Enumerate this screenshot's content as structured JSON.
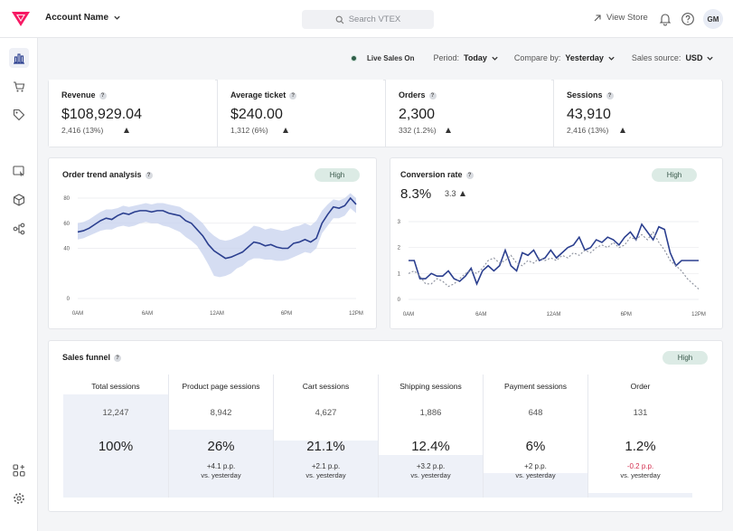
{
  "header": {
    "account_name": "Account Name",
    "search_placeholder": "Search VTEX",
    "view_store": "View Store",
    "avatar_initials": "GM"
  },
  "filters": {
    "live_sales": "Live Sales On",
    "period_label": "Period:",
    "period_value": "Today",
    "compare_label": "Compare by:",
    "compare_value": "Yesterday",
    "source_label": "Sales source:",
    "source_value": "USD"
  },
  "kpis": [
    {
      "title": "Revenue",
      "value": "$108,929.04",
      "sub": "2,416 (13%)"
    },
    {
      "title": "Average ticket",
      "value": "$240.00",
      "sub": "1,312 (6%)"
    },
    {
      "title": "Orders",
      "value": "2,300",
      "sub": "332 (1.2%)"
    },
    {
      "title": "Sessions",
      "value": "43,910",
      "sub": "2,416 (13%)"
    }
  ],
  "order_trend": {
    "title": "Order trend analysis",
    "badge": "High",
    "chart_data": {
      "type": "area",
      "x_labels": [
        "0AM",
        "6AM",
        "12AM",
        "6PM",
        "12PM"
      ],
      "y_ticks": [
        "0",
        "40",
        "60",
        "80"
      ],
      "ylim": [
        0,
        80
      ],
      "series": [
        {
          "values": [
            53,
            54,
            56,
            59,
            62,
            64,
            63,
            66,
            68,
            67,
            69,
            70,
            70,
            69,
            70,
            70,
            68,
            67,
            66,
            62,
            60,
            55,
            50,
            43,
            38,
            35,
            32,
            33,
            35,
            37,
            41,
            45,
            44,
            42,
            43,
            41,
            40,
            40,
            44,
            45,
            47,
            45,
            48,
            60,
            67,
            73,
            72,
            74,
            80,
            75
          ]
        }
      ],
      "band_lower": [
        47,
        48,
        50,
        52,
        54,
        55,
        55,
        57,
        58,
        57,
        58,
        60,
        61,
        60,
        60,
        58,
        57,
        55,
        53,
        49,
        46,
        42,
        35,
        27,
        18,
        17,
        18,
        20,
        24,
        26,
        30,
        32,
        32,
        31,
        31,
        30,
        30,
        31,
        33,
        35,
        37,
        36,
        40,
        52,
        58,
        64,
        64,
        66,
        72,
        68
      ],
      "band_upper": [
        60,
        61,
        63,
        66,
        69,
        71,
        71,
        72,
        74,
        73,
        74,
        75,
        76,
        75,
        76,
        76,
        75,
        74,
        73,
        70,
        68,
        64,
        60,
        54,
        50,
        47,
        46,
        47,
        49,
        51,
        54,
        58,
        57,
        55,
        56,
        55,
        54,
        55,
        57,
        58,
        60,
        58,
        62,
        70,
        75,
        79,
        78,
        80,
        84,
        80
      ]
    }
  },
  "conversion": {
    "title": "Conversion rate",
    "value": "8.3%",
    "delta": "3.3",
    "badge": "High",
    "chart_data": {
      "type": "line",
      "x_labels": [
        "0AM",
        "6AM",
        "12AM",
        "6PM",
        "12PM"
      ],
      "y_ticks": [
        "0",
        "1",
        "2",
        "3"
      ],
      "ylim": [
        0,
        3
      ],
      "series": [
        {
          "values": [
            1.5,
            1.5,
            0.8,
            0.8,
            1.0,
            0.9,
            0.9,
            1.1,
            0.8,
            0.7,
            0.9,
            1.2,
            0.6,
            1.1,
            1.3,
            1.1,
            1.3,
            1.9,
            1.3,
            1.1,
            1.8,
            1.7,
            1.9,
            1.5,
            1.6,
            1.9,
            1.6,
            1.8,
            2.0,
            2.1,
            2.4,
            1.9,
            2.0,
            2.3,
            2.2,
            2.4,
            2.3,
            2.1,
            2.4,
            2.6,
            2.3,
            2.9,
            2.6,
            2.3,
            2.8,
            2.7,
            1.8,
            1.3,
            1.5,
            1.5,
            1.5,
            1.5
          ]
        },
        {
          "values": [
            1.0,
            1.1,
            0.9,
            0.6,
            0.6,
            0.8,
            0.7,
            0.5,
            0.6,
            0.8,
            1.0,
            1.1,
            1.0,
            1.2,
            1.5,
            1.6,
            1.4,
            1.5,
            1.7,
            1.4,
            1.3,
            1.5,
            1.4,
            1.6,
            1.5,
            1.6,
            1.5,
            1.7,
            1.6,
            1.8,
            1.7,
            1.9,
            1.8,
            2.0,
            2.1,
            2.0,
            2.2,
            2.0,
            2.1,
            2.4,
            2.3,
            2.5,
            2.3,
            2.6,
            2.2,
            1.9,
            1.5,
            1.3,
            1.1,
            0.8,
            0.6,
            0.4
          ]
        }
      ]
    }
  },
  "funnel": {
    "title": "Sales funnel",
    "badge": "High",
    "columns": [
      {
        "title": "Total sessions",
        "count": "12,247",
        "pct": "100%",
        "delta": "",
        "vs": "",
        "fill": 1.0
      },
      {
        "title": "Product page sessions",
        "count": "8,942",
        "pct": "26%",
        "delta": "+4.1 p.p.",
        "vs": "vs. yesterday",
        "fill": 0.66
      },
      {
        "title": "Cart sessions",
        "count": "4,627",
        "pct": "21.1%",
        "delta": "+2.1 p.p.",
        "vs": "vs. yesterday",
        "fill": 0.55
      },
      {
        "title": "Shipping sessions",
        "count": "1,886",
        "pct": "12.4%",
        "delta": "+3.2 p.p.",
        "vs": "vs. yesterday",
        "fill": 0.41
      },
      {
        "title": "Payment sessions",
        "count": "648",
        "pct": "6%",
        "delta": "+2 p.p.",
        "vs": "vs. yesterday",
        "fill": 0.24
      },
      {
        "title": "Order",
        "count": "131",
        "pct": "1.2%",
        "delta": "-0.2 p.p.",
        "vs": "vs. yesterday",
        "fill": 0.04
      }
    ]
  },
  "colors": {
    "accent": "#f71963",
    "line": "#2b3f8f",
    "band": "#c7d1ee",
    "badge_bg": "#dcebe5",
    "negative": "#d32f4f"
  }
}
